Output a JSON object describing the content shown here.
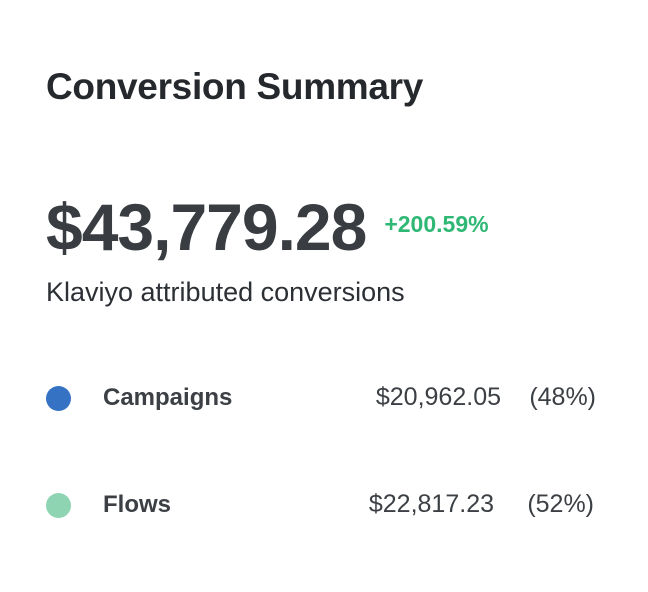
{
  "summary": {
    "title": "Conversion Summary",
    "total": "$43,779.28",
    "change": "+200.59%",
    "change_color": "#2eb874",
    "subtitle": "Klaviyo attributed conversions"
  },
  "breakdown": [
    {
      "label": "Campaigns",
      "amount": "$20,962.05",
      "percent": "(48%)",
      "color": "#3672c4"
    },
    {
      "label": "Flows",
      "amount": "$22,817.23",
      "percent": "(52%)",
      "color": "#8fd4b2"
    }
  ]
}
